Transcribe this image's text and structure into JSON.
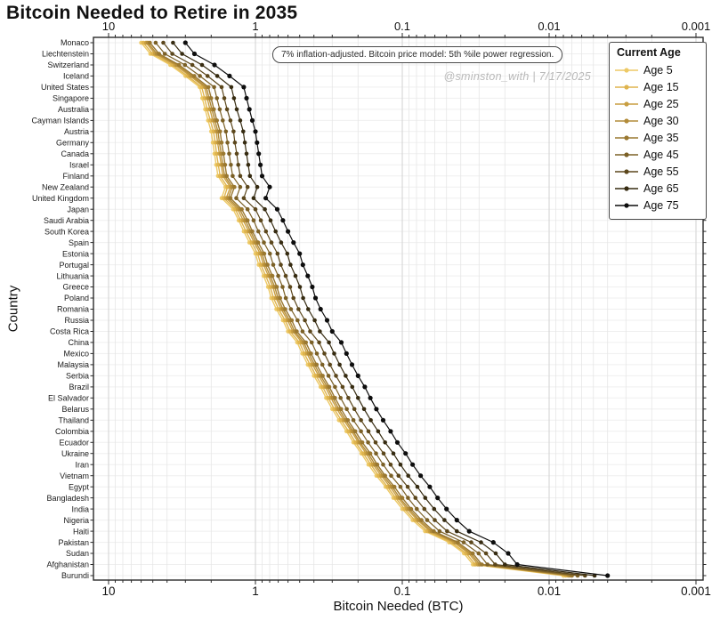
{
  "window": {
    "title": "Bitcoin Needed to Retire in 2035"
  },
  "annotation": {
    "text": "7% inflation-adjusted. Bitcoin price model: 5th %ile power regression.",
    "watermark": "@sminston_with  |  7/17/2025"
  },
  "legend": {
    "title": "Current Age",
    "position": "upper-right"
  },
  "axes": {
    "xlabel": "Bitcoin Needed (BTC)",
    "ylabel": "Country"
  },
  "colors": {
    "grid_minor": "#e6e6e6",
    "grid_major": "#d2d2d2",
    "grid_row": "#efefef",
    "axis": "#2b2b2b",
    "text": "#111111",
    "watermark": "#b9b9b9"
  },
  "chart_data": {
    "type": "line",
    "title": "Bitcoin Needed to Retire in 2035",
    "xlabel": "Bitcoin Needed (BTC)",
    "ylabel": "Country",
    "x_scale": "log",
    "x_reversed": true,
    "x_ticks": [
      "10",
      "1",
      "0.1",
      "0.01",
      "0.001"
    ],
    "x_tick_values": [
      10,
      1,
      0.1,
      0.01,
      0.001
    ],
    "x_range": [
      10,
      0.001
    ],
    "grid": true,
    "legend_title": "Current Age",
    "legend_position": "upper right",
    "units": "BTC",
    "categories": [
      "Monaco",
      "Liechtenstein",
      "Switzerland",
      "Iceland",
      "United States",
      "Singapore",
      "Australia",
      "Cayman Islands",
      "Austria",
      "Germany",
      "Canada",
      "Israel",
      "Finland",
      "New Zealand",
      "United Kingdom",
      "Japan",
      "Saudi Arabia",
      "South Korea",
      "Spain",
      "Estonia",
      "Portugal",
      "Lithuania",
      "Greece",
      "Poland",
      "Romania",
      "Russia",
      "Costa Rica",
      "China",
      "Mexico",
      "Malaysia",
      "Serbia",
      "Brazil",
      "El Salvador",
      "Belarus",
      "Thailand",
      "Colombia",
      "Ecuador",
      "Ukraine",
      "Iran",
      "Vietnam",
      "Egypt",
      "Bangladesh",
      "India",
      "Nigeria",
      "Haiti",
      "Pakistan",
      "Sudan",
      "Afghanistan",
      "Burundi"
    ],
    "series": [
      {
        "name": "Age 5",
        "color": "#EDC966",
        "values": [
          6.0,
          5.2,
          3.8,
          3.0,
          2.4,
          2.3,
          2.2,
          2.1,
          2.0,
          1.95,
          1.9,
          1.85,
          1.8,
          1.6,
          1.7,
          1.42,
          1.3,
          1.2,
          1.1,
          1.0,
          0.95,
          0.88,
          0.82,
          0.78,
          0.72,
          0.65,
          0.6,
          0.52,
          0.48,
          0.44,
          0.4,
          0.36,
          0.33,
          0.3,
          0.27,
          0.24,
          0.215,
          0.19,
          0.17,
          0.15,
          0.13,
          0.115,
          0.1,
          0.085,
          0.07,
          0.048,
          0.038,
          0.033,
          0.008
        ]
      },
      {
        "name": "Age 15",
        "color": "#DFB44E",
        "values": [
          5.8,
          5.02,
          3.67,
          2.9,
          2.32,
          2.22,
          2.13,
          2.03,
          1.93,
          1.88,
          1.84,
          1.79,
          1.74,
          1.55,
          1.64,
          1.37,
          1.26,
          1.16,
          1.06,
          0.966,
          0.918,
          0.85,
          0.792,
          0.753,
          0.696,
          0.628,
          0.58,
          0.502,
          0.464,
          0.425,
          0.386,
          0.348,
          0.319,
          0.29,
          0.261,
          0.232,
          0.208,
          0.184,
          0.164,
          0.145,
          0.126,
          0.111,
          0.0966,
          0.0821,
          0.0676,
          0.0464,
          0.0367,
          0.0319,
          0.0077
        ]
      },
      {
        "name": "Age 25",
        "color": "#C89E41",
        "values": [
          5.56,
          4.82,
          3.52,
          2.78,
          2.22,
          2.13,
          2.04,
          1.95,
          1.85,
          1.81,
          1.76,
          1.71,
          1.67,
          1.48,
          1.58,
          1.32,
          1.21,
          1.11,
          1.02,
          0.927,
          0.881,
          0.816,
          0.76,
          0.723,
          0.667,
          0.603,
          0.556,
          0.482,
          0.445,
          0.408,
          0.371,
          0.334,
          0.306,
          0.278,
          0.25,
          0.222,
          0.199,
          0.176,
          0.158,
          0.139,
          0.121,
          0.107,
          0.0927,
          0.0788,
          0.0649,
          0.0445,
          0.0352,
          0.0306,
          0.0074
        ]
      },
      {
        "name": "Age 30",
        "color": "#B28B38",
        "values": [
          5.41,
          4.69,
          3.42,
          2.7,
          2.16,
          2.07,
          1.98,
          1.89,
          1.8,
          1.76,
          1.71,
          1.67,
          1.62,
          1.44,
          1.53,
          1.28,
          1.17,
          1.08,
          0.991,
          0.901,
          0.856,
          0.793,
          0.739,
          0.703,
          0.649,
          0.586,
          0.541,
          0.469,
          0.432,
          0.396,
          0.36,
          0.324,
          0.297,
          0.27,
          0.243,
          0.216,
          0.194,
          0.171,
          0.153,
          0.135,
          0.117,
          0.104,
          0.0901,
          0.0766,
          0.0631,
          0.0432,
          0.0342,
          0.0297,
          0.0072
        ]
      },
      {
        "name": "Age 35",
        "color": "#9A7830",
        "values": [
          5.23,
          4.53,
          3.31,
          2.61,
          2.09,
          2.0,
          1.92,
          1.83,
          1.74,
          1.7,
          1.65,
          1.61,
          1.57,
          1.39,
          1.48,
          1.24,
          1.13,
          1.05,
          0.958,
          0.871,
          0.827,
          0.766,
          0.714,
          0.679,
          0.627,
          0.566,
          0.523,
          0.453,
          0.418,
          0.383,
          0.348,
          0.314,
          0.287,
          0.261,
          0.235,
          0.209,
          0.187,
          0.165,
          0.148,
          0.131,
          0.113,
          0.1,
          0.0871,
          0.074,
          0.061,
          0.0418,
          0.0331,
          0.0287,
          0.007
        ]
      },
      {
        "name": "Age 45",
        "color": "#7B6026",
        "values": [
          4.78,
          4.14,
          3.02,
          2.39,
          1.91,
          1.83,
          1.75,
          1.67,
          1.59,
          1.55,
          1.51,
          1.47,
          1.43,
          1.27,
          1.35,
          1.13,
          1.03,
          0.955,
          0.876,
          0.796,
          0.756,
          0.7,
          0.653,
          0.621,
          0.573,
          0.517,
          0.478,
          0.414,
          0.382,
          0.35,
          0.318,
          0.287,
          0.263,
          0.239,
          0.215,
          0.191,
          0.171,
          0.151,
          0.135,
          0.119,
          0.103,
          0.0915,
          0.0796,
          0.0677,
          0.0557,
          0.0382,
          0.0302,
          0.0263,
          0.0064
        ]
      },
      {
        "name": "Age 55",
        "color": "#5C471C",
        "values": [
          4.24,
          3.68,
          2.69,
          2.12,
          1.7,
          1.63,
          1.56,
          1.48,
          1.41,
          1.38,
          1.34,
          1.31,
          1.27,
          1.13,
          1.2,
          1.0,
          0.919,
          0.848,
          0.778,
          0.707,
          0.672,
          0.622,
          0.58,
          0.551,
          0.509,
          0.46,
          0.424,
          0.368,
          0.339,
          0.311,
          0.283,
          0.255,
          0.233,
          0.212,
          0.191,
          0.17,
          0.152,
          0.134,
          0.12,
          0.106,
          0.0919,
          0.0813,
          0.0707,
          0.0601,
          0.0495,
          0.0339,
          0.0269,
          0.0233,
          0.0057
        ]
      },
      {
        "name": "Age 65",
        "color": "#362B11",
        "values": [
          3.64,
          3.16,
          2.31,
          1.82,
          1.46,
          1.4,
          1.34,
          1.27,
          1.21,
          1.18,
          1.15,
          1.12,
          1.09,
          0.971,
          1.03,
          0.862,
          0.789,
          0.728,
          0.668,
          0.607,
          0.577,
          0.534,
          0.498,
          0.473,
          0.437,
          0.395,
          0.364,
          0.316,
          0.291,
          0.267,
          0.243,
          0.219,
          0.2,
          0.182,
          0.164,
          0.146,
          0.131,
          0.115,
          0.103,
          0.0911,
          0.0789,
          0.0698,
          0.0607,
          0.0516,
          0.0425,
          0.0291,
          0.0231,
          0.02,
          0.0049
        ]
      },
      {
        "name": "Age 75",
        "color": "#0D0D0D",
        "values": [
          3.0,
          2.6,
          1.9,
          1.5,
          1.2,
          1.15,
          1.1,
          1.05,
          1.0,
          0.975,
          0.95,
          0.925,
          0.9,
          0.8,
          0.85,
          0.71,
          0.65,
          0.6,
          0.55,
          0.5,
          0.475,
          0.44,
          0.41,
          0.39,
          0.36,
          0.325,
          0.3,
          0.26,
          0.24,
          0.22,
          0.2,
          0.18,
          0.165,
          0.15,
          0.135,
          0.12,
          0.108,
          0.095,
          0.085,
          0.075,
          0.065,
          0.0575,
          0.05,
          0.0425,
          0.035,
          0.024,
          0.019,
          0.0165,
          0.004
        ]
      }
    ]
  }
}
